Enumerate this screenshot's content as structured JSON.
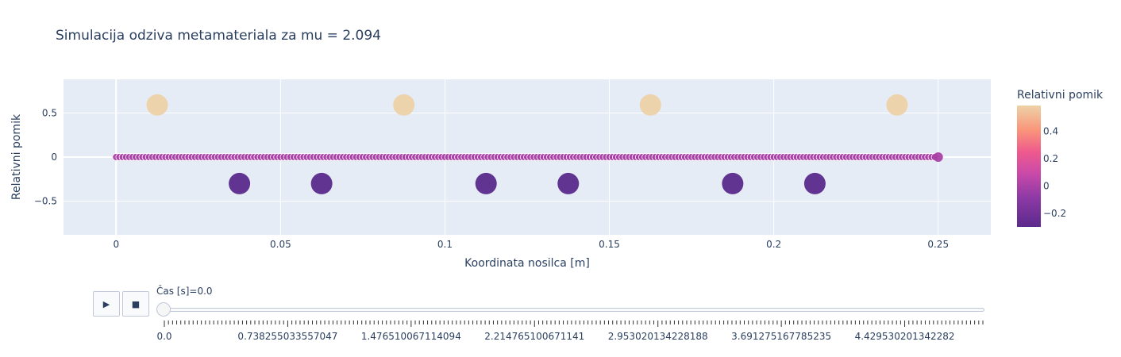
{
  "chart_data": {
    "type": "scatter",
    "title": "Simulacija odziva metamateriala za mu = 2.094",
    "xlabel": "Koordinata nosilca [m]",
    "ylabel": "Relativni pomik",
    "xlim": [
      -0.016,
      0.266
    ],
    "ylim": [
      -0.88,
      0.88
    ],
    "xticks": [
      0,
      0.05,
      0.1,
      0.15,
      0.2,
      0.25
    ],
    "xtick_labels": [
      "0",
      "0.05",
      "0.1",
      "0.15",
      "0.2",
      "0.25"
    ],
    "yticks": [
      0.5,
      0,
      -0.5
    ],
    "ytick_labels": [
      "0.5",
      "0",
      "−0.5"
    ],
    "grid": true,
    "beam_series": {
      "x_start": 0,
      "x_end": 0.25,
      "count": 251,
      "y": 0
    },
    "resonator_series": {
      "x": [
        0.0125,
        0.0375,
        0.0625,
        0.0875,
        0.1125,
        0.1375,
        0.1625,
        0.1875,
        0.2125,
        0.2375
      ],
      "y": [
        0.59,
        -0.3,
        -0.3,
        0.59,
        -0.3,
        -0.3,
        0.59,
        -0.3,
        -0.3,
        0.59
      ]
    },
    "colorbar": {
      "title": "Relativni pomik",
      "range": [
        -0.3,
        0.59
      ],
      "ticks": [
        0.4,
        0.2,
        0,
        -0.2
      ],
      "tick_labels": [
        "0.4",
        "0.2",
        "0",
        "−0.2"
      ],
      "colorscale": "plasma-like"
    }
  },
  "animation": {
    "play_icon": "play-icon",
    "stop_icon": "stop-icon",
    "play_symbol": "▶",
    "stop_symbol": "■",
    "current_label": "Čas [s]=0.0",
    "frame_count": 200,
    "tick_labels": [
      "0.0",
      "0.738255033557047",
      "1.476510067114094",
      "2.214765100671141",
      "2.953020134228188",
      "3.691275167785235",
      "4.429530201342282"
    ]
  }
}
